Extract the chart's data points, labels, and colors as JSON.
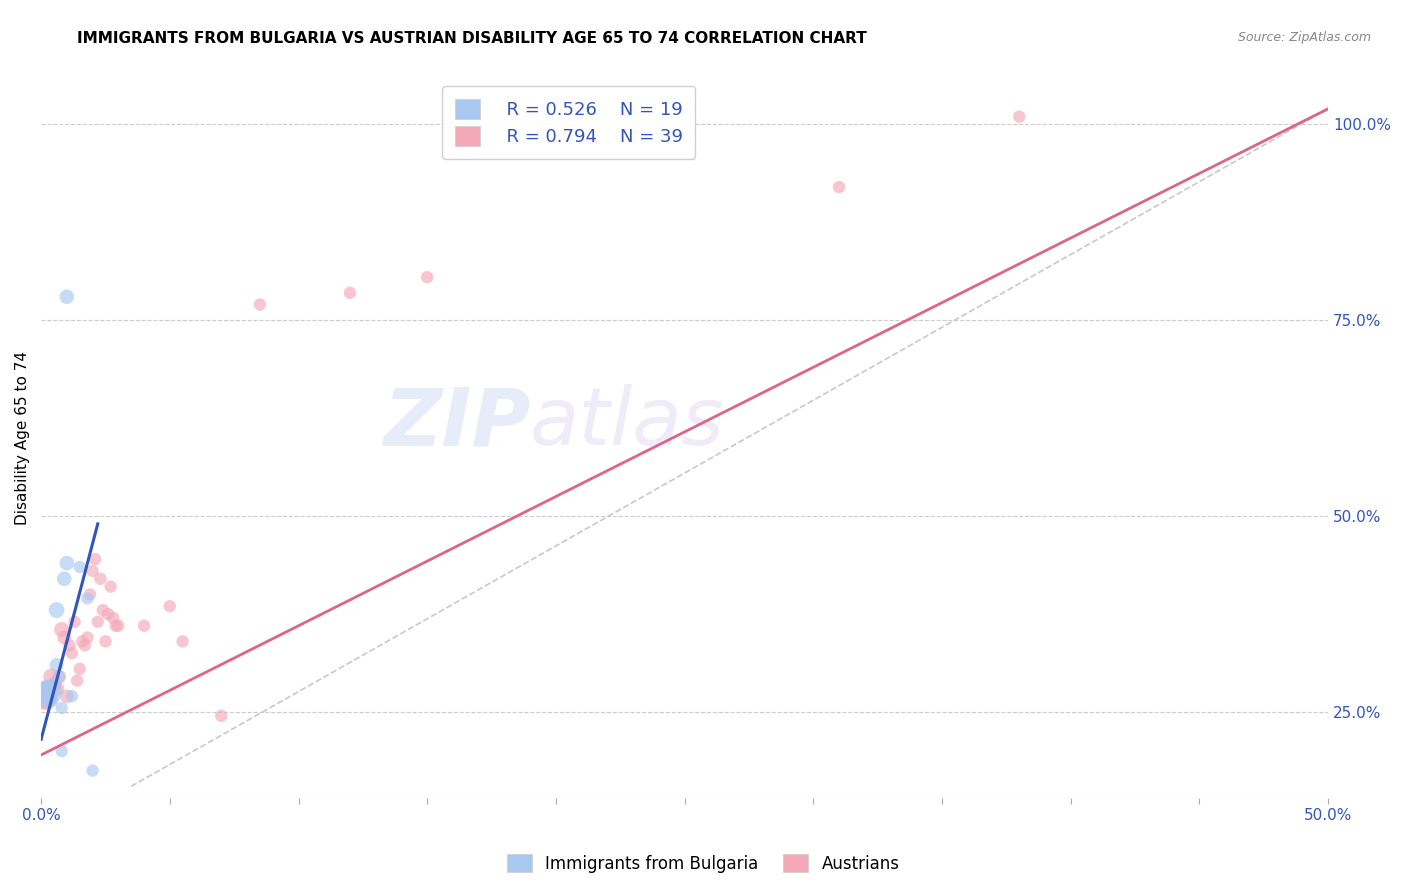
{
  "title": "IMMIGRANTS FROM BULGARIA VS AUSTRIAN DISABILITY AGE 65 TO 74 CORRELATION CHART",
  "source": "Source: ZipAtlas.com",
  "ylabel": "Disability Age 65 to 74",
  "xlim": [
    0.0,
    0.5
  ],
  "ylim": [
    0.14,
    1.06
  ],
  "legend_r1": "R = 0.526",
  "legend_n1": "N = 19",
  "legend_r2": "R = 0.794",
  "legend_n2": "N = 39",
  "blue_color": "#A8C8F0",
  "pink_color": "#F4A8B8",
  "blue_line_color": "#3355BB",
  "pink_line_color": "#DD6688",
  "diagonal_color": "#BBBBBB",
  "watermark_zip": "ZIP",
  "watermark_atlas": "atlas",
  "blue_scatter_x": [
    0.001,
    0.002,
    0.002,
    0.003,
    0.003,
    0.004,
    0.005,
    0.006,
    0.006,
    0.007,
    0.008,
    0.008,
    0.009,
    0.01,
    0.01,
    0.012,
    0.015,
    0.018,
    0.02
  ],
  "blue_scatter_y": [
    0.28,
    0.275,
    0.27,
    0.275,
    0.28,
    0.265,
    0.285,
    0.38,
    0.31,
    0.295,
    0.255,
    0.2,
    0.42,
    0.44,
    0.78,
    0.27,
    0.435,
    0.395,
    0.175
  ],
  "blue_scatter_s": [
    120,
    160,
    250,
    350,
    120,
    100,
    100,
    130,
    100,
    80,
    80,
    80,
    110,
    110,
    110,
    80,
    80,
    80,
    80
  ],
  "pink_scatter_x": [
    0.001,
    0.002,
    0.003,
    0.004,
    0.005,
    0.006,
    0.007,
    0.008,
    0.009,
    0.01,
    0.011,
    0.012,
    0.013,
    0.014,
    0.015,
    0.016,
    0.017,
    0.018,
    0.019,
    0.02,
    0.021,
    0.022,
    0.023,
    0.024,
    0.025,
    0.026,
    0.027,
    0.028,
    0.029,
    0.03,
    0.04,
    0.05,
    0.055,
    0.07,
    0.085,
    0.12,
    0.15,
    0.31,
    0.38
  ],
  "pink_scatter_y": [
    0.27,
    0.265,
    0.28,
    0.295,
    0.285,
    0.28,
    0.295,
    0.355,
    0.345,
    0.27,
    0.335,
    0.325,
    0.365,
    0.29,
    0.305,
    0.34,
    0.335,
    0.345,
    0.4,
    0.43,
    0.445,
    0.365,
    0.42,
    0.38,
    0.34,
    0.375,
    0.41,
    0.37,
    0.36,
    0.36,
    0.36,
    0.385,
    0.34,
    0.245,
    0.77,
    0.785,
    0.805,
    0.92,
    1.01
  ],
  "pink_scatter_s": [
    350,
    200,
    150,
    140,
    120,
    120,
    100,
    120,
    100,
    100,
    80,
    80,
    80,
    80,
    80,
    80,
    80,
    80,
    80,
    80,
    80,
    80,
    80,
    80,
    80,
    80,
    80,
    80,
    80,
    80,
    80,
    80,
    80,
    80,
    80,
    80,
    80,
    80,
    80
  ],
  "blue_line_x": [
    0.0,
    0.022
  ],
  "blue_line_y": [
    0.215,
    0.49
  ],
  "pink_line_x": [
    0.0,
    0.5
  ],
  "pink_line_y": [
    0.195,
    1.02
  ],
  "diag_line_x": [
    0.035,
    0.5
  ],
  "diag_line_y": [
    0.155,
    1.02
  ],
  "ytick_positions": [
    0.25,
    0.5,
    0.75,
    1.0
  ],
  "ytick_labels": [
    "25.0%",
    "50.0%",
    "75.0%",
    "100.0%"
  ],
  "xtick_positions": [
    0.0,
    0.05,
    0.1,
    0.15,
    0.2,
    0.25,
    0.3,
    0.35,
    0.4,
    0.45,
    0.5
  ],
  "xtick_labels": [
    "0.0%",
    "",
    "",
    "",
    "",
    "",
    "",
    "",
    "",
    "",
    "50.0%"
  ]
}
